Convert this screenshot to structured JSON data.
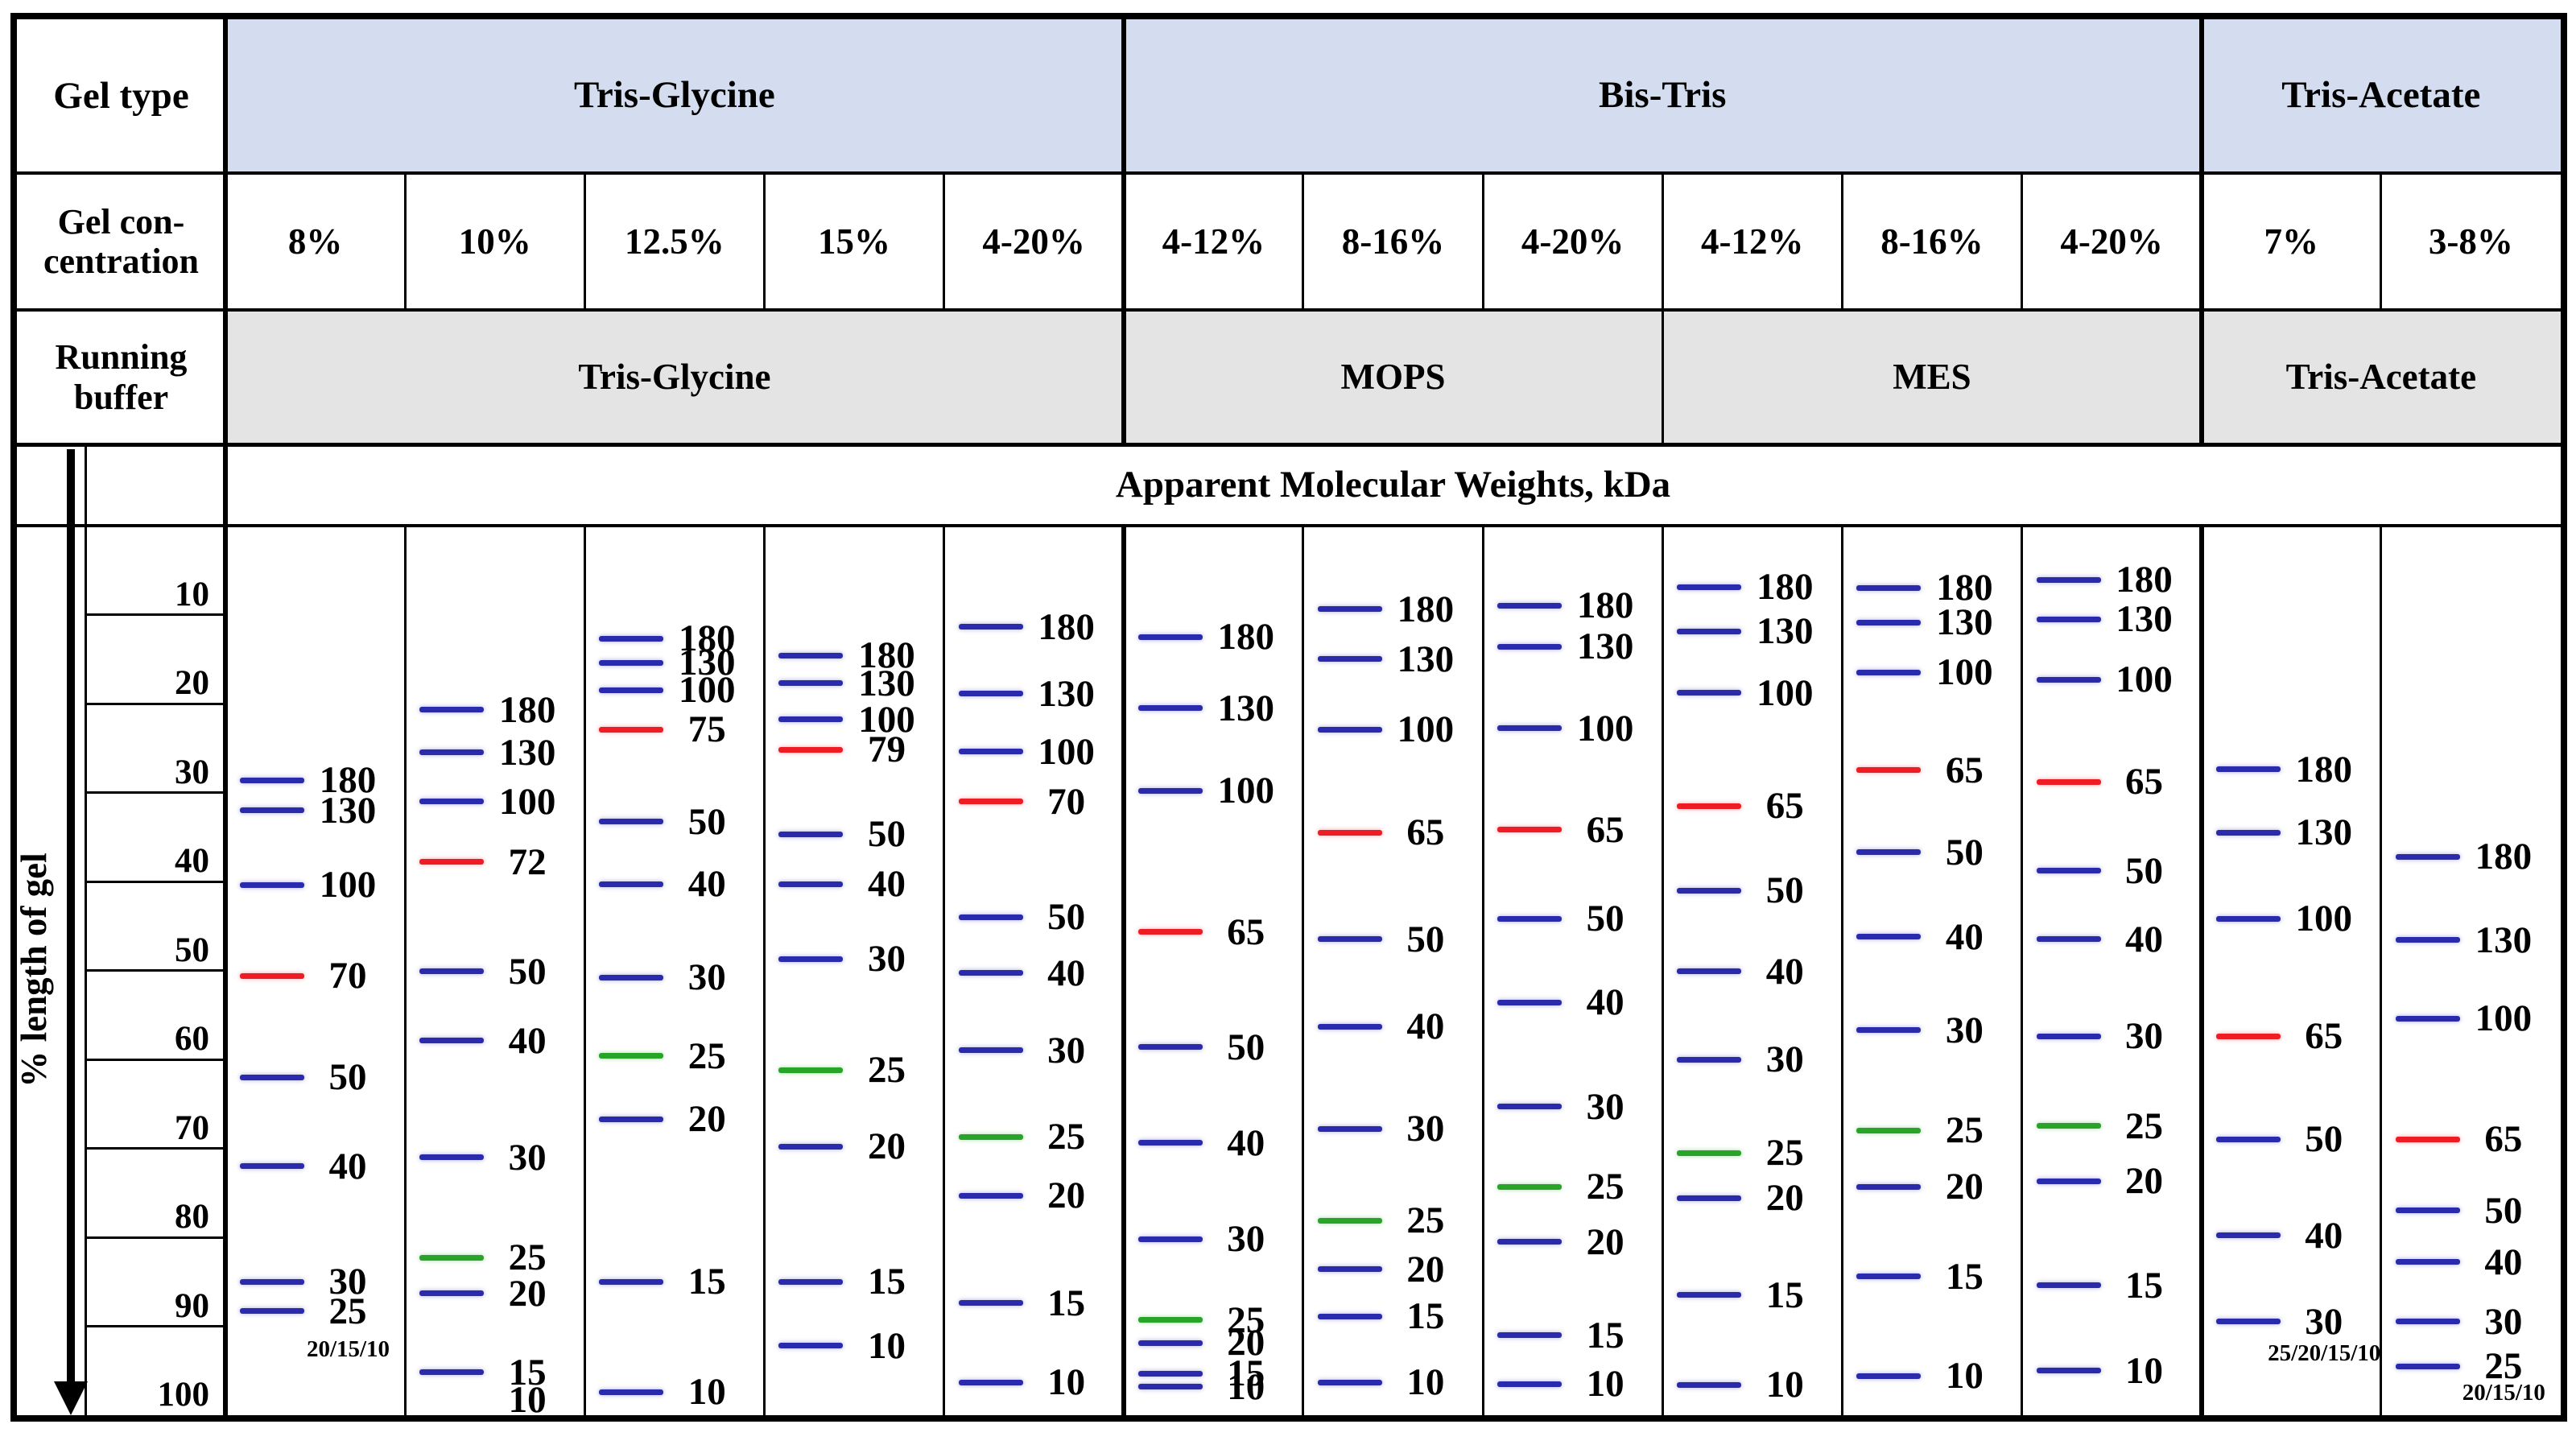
{
  "table": {
    "gel_type_row": {
      "label": "Gel type",
      "groups": [
        {
          "label": "Tris-Glycine",
          "cols": 5
        },
        {
          "label": "Bis-Tris",
          "cols": 6
        },
        {
          "label": "Tris-Acetate",
          "cols": 2
        }
      ]
    },
    "concentration_row": {
      "label_lines": [
        "Gel con-",
        "centration"
      ],
      "values": [
        "8%",
        "10%",
        "12.5%",
        "15%",
        "4-20%",
        "4-12%",
        "8-16%",
        "4-20%",
        "4-12%",
        "8-16%",
        "4-20%",
        "7%",
        "3-8%"
      ]
    },
    "buffer_row": {
      "label_lines": [
        "Running",
        "buffer"
      ],
      "groups": [
        {
          "label": "Tris-Glycine",
          "cols": 5
        },
        {
          "label": "MOPS",
          "cols": 3
        },
        {
          "label": "MES",
          "cols": 3
        },
        {
          "label": "Tris-Acetate",
          "cols": 2
        }
      ]
    },
    "mw_header": "Apparent Molecular Weights, kDa"
  },
  "axis": {
    "title": "% length of gel",
    "ticks": [
      "10",
      "20",
      "30",
      "40",
      "50",
      "60",
      "70",
      "80",
      "90",
      "100"
    ],
    "range": [
      0,
      100
    ]
  },
  "colors": {
    "band_blue": "#2a2aad",
    "band_red": "#ee1c25",
    "band_green": "#28a428",
    "gel_type_fill": "#d3ddef",
    "buffer_fill": "#e4e4e4",
    "line_black": "#000000"
  },
  "chart_data": {
    "type": "table",
    "title": "Apparent Molecular Weights, kDa",
    "ylabel": "% length of gel",
    "ylim": [
      0,
      100
    ],
    "value_unit": "kDa",
    "lanes": [
      {
        "gel_type": "Tris-Glycine",
        "concentration": "8%",
        "running_buffer": "Tris-Glycine",
        "bands": [
          {
            "kda": 180,
            "color": "blue",
            "pct": 28.6
          },
          {
            "kda": 130,
            "color": "blue",
            "pct": 32.0
          },
          {
            "kda": 100,
            "color": "blue",
            "pct": 40.4
          },
          {
            "kda": 70,
            "color": "red",
            "pct": 50.6
          },
          {
            "kda": 50,
            "color": "blue",
            "pct": 62.0
          },
          {
            "kda": 40,
            "color": "blue",
            "pct": 72.0
          },
          {
            "kda": 30,
            "color": "blue",
            "pct": 85.0
          },
          {
            "kda": 25,
            "color": "blue",
            "pct": 88.3
          }
        ],
        "extra_label": {
          "text": "20/15/10",
          "pct": 92.6,
          "size": "small"
        }
      },
      {
        "gel_type": "Tris-Glycine",
        "concentration": "10%",
        "running_buffer": "Tris-Glycine",
        "bands": [
          {
            "kda": 180,
            "color": "blue",
            "pct": 20.7
          },
          {
            "kda": 130,
            "color": "blue",
            "pct": 25.5
          },
          {
            "kda": 100,
            "color": "blue",
            "pct": 31.0
          },
          {
            "kda": 72,
            "color": "red",
            "pct": 37.8
          },
          {
            "kda": 50,
            "color": "blue",
            "pct": 50.1
          },
          {
            "kda": 40,
            "color": "blue",
            "pct": 57.9
          },
          {
            "kda": 30,
            "color": "blue",
            "pct": 71.0
          },
          {
            "kda": 25,
            "color": "green",
            "pct": 82.3
          },
          {
            "kda": 20,
            "color": "blue",
            "pct": 86.3
          },
          {
            "kda": 15,
            "color": "blue",
            "pct": 95.2
          }
        ],
        "extra_label": {
          "text": "10",
          "pct": 98.3,
          "size": "normal"
        }
      },
      {
        "gel_type": "Tris-Glycine",
        "concentration": "12.5%",
        "running_buffer": "Tris-Glycine",
        "bands": [
          {
            "kda": 180,
            "color": "blue",
            "pct": 12.7
          },
          {
            "kda": 130,
            "color": "blue",
            "pct": 15.4
          },
          {
            "kda": 100,
            "color": "blue",
            "pct": 18.5
          },
          {
            "kda": 75,
            "color": "red",
            "pct": 22.9
          },
          {
            "kda": 50,
            "color": "blue",
            "pct": 33.3
          },
          {
            "kda": 40,
            "color": "blue",
            "pct": 40.3
          },
          {
            "kda": 30,
            "color": "blue",
            "pct": 50.8
          },
          {
            "kda": 25,
            "color": "green",
            "pct": 59.6
          },
          {
            "kda": 20,
            "color": "blue",
            "pct": 66.7
          },
          {
            "kda": 15,
            "color": "blue",
            "pct": 85.0
          },
          {
            "kda": 10,
            "color": "blue",
            "pct": 97.4
          }
        ]
      },
      {
        "gel_type": "Tris-Glycine",
        "concentration": "15%",
        "running_buffer": "Tris-Glycine",
        "bands": [
          {
            "kda": 180,
            "color": "blue",
            "pct": 14.6
          },
          {
            "kda": 130,
            "color": "blue",
            "pct": 17.7
          },
          {
            "kda": 100,
            "color": "blue",
            "pct": 21.8
          },
          {
            "kda": 79,
            "color": "red",
            "pct": 25.2
          },
          {
            "kda": 50,
            "color": "blue",
            "pct": 34.7
          },
          {
            "kda": 40,
            "color": "blue",
            "pct": 40.3
          },
          {
            "kda": 30,
            "color": "blue",
            "pct": 48.7
          },
          {
            "kda": 25,
            "color": "green",
            "pct": 61.2
          },
          {
            "kda": 20,
            "color": "blue",
            "pct": 69.8
          },
          {
            "kda": 15,
            "color": "blue",
            "pct": 85.0
          },
          {
            "kda": 10,
            "color": "blue",
            "pct": 92.2
          }
        ]
      },
      {
        "gel_type": "Tris-Glycine",
        "concentration": "4-20%",
        "running_buffer": "Tris-Glycine",
        "bands": [
          {
            "kda": 180,
            "color": "blue",
            "pct": 11.4
          },
          {
            "kda": 130,
            "color": "blue",
            "pct": 18.9
          },
          {
            "kda": 100,
            "color": "blue",
            "pct": 25.4
          },
          {
            "kda": 70,
            "color": "red",
            "pct": 31.0
          },
          {
            "kda": 50,
            "color": "blue",
            "pct": 44.0
          },
          {
            "kda": 40,
            "color": "blue",
            "pct": 50.3
          },
          {
            "kda": 30,
            "color": "blue",
            "pct": 59.0
          },
          {
            "kda": 25,
            "color": "green",
            "pct": 68.7
          },
          {
            "kda": 20,
            "color": "blue",
            "pct": 75.3
          },
          {
            "kda": 15,
            "color": "blue",
            "pct": 87.4
          },
          {
            "kda": 10,
            "color": "blue",
            "pct": 96.3
          }
        ]
      },
      {
        "gel_type": "Bis-Tris",
        "concentration": "4-12%",
        "running_buffer": "MOPS",
        "bands": [
          {
            "kda": 180,
            "color": "blue",
            "pct": 12.5
          },
          {
            "kda": 130,
            "color": "blue",
            "pct": 20.5
          },
          {
            "kda": 100,
            "color": "blue",
            "pct": 29.8
          },
          {
            "kda": 65,
            "color": "red",
            "pct": 45.7
          },
          {
            "kda": 50,
            "color": "blue",
            "pct": 58.6
          },
          {
            "kda": 40,
            "color": "blue",
            "pct": 69.4
          },
          {
            "kda": 30,
            "color": "blue",
            "pct": 80.2
          },
          {
            "kda": 25,
            "color": "green",
            "pct": 89.3
          },
          {
            "kda": 20,
            "color": "blue",
            "pct": 91.9
          },
          {
            "kda": 15,
            "color": "blue",
            "pct": 95.3
          },
          {
            "kda": 10,
            "color": "blue",
            "pct": 96.8
          }
        ]
      },
      {
        "gel_type": "Bis-Tris",
        "concentration": "8-16%",
        "running_buffer": "MOPS",
        "bands": [
          {
            "kda": 180,
            "color": "blue",
            "pct": 9.4
          },
          {
            "kda": 130,
            "color": "blue",
            "pct": 15.0
          },
          {
            "kda": 100,
            "color": "blue",
            "pct": 22.9
          },
          {
            "kda": 65,
            "color": "red",
            "pct": 34.5
          },
          {
            "kda": 50,
            "color": "blue",
            "pct": 46.5
          },
          {
            "kda": 40,
            "color": "blue",
            "pct": 56.3
          },
          {
            "kda": 30,
            "color": "blue",
            "pct": 67.8
          },
          {
            "kda": 25,
            "color": "green",
            "pct": 78.1
          },
          {
            "kda": 20,
            "color": "blue",
            "pct": 83.6
          },
          {
            "kda": 15,
            "color": "blue",
            "pct": 88.9
          },
          {
            "kda": 10,
            "color": "blue",
            "pct": 96.3
          }
        ]
      },
      {
        "gel_type": "Bis-Tris",
        "concentration": "4-20%",
        "running_buffer": "MOPS",
        "bands": [
          {
            "kda": 180,
            "color": "blue",
            "pct": 9.0
          },
          {
            "kda": 130,
            "color": "blue",
            "pct": 13.6
          },
          {
            "kda": 100,
            "color": "blue",
            "pct": 22.8
          },
          {
            "kda": 65,
            "color": "red",
            "pct": 34.2
          },
          {
            "kda": 50,
            "color": "blue",
            "pct": 44.2
          },
          {
            "kda": 40,
            "color": "blue",
            "pct": 53.6
          },
          {
            "kda": 30,
            "color": "blue",
            "pct": 65.3
          },
          {
            "kda": 25,
            "color": "green",
            "pct": 74.3
          },
          {
            "kda": 20,
            "color": "blue",
            "pct": 80.5
          },
          {
            "kda": 15,
            "color": "blue",
            "pct": 91.0
          },
          {
            "kda": 10,
            "color": "blue",
            "pct": 96.5
          }
        ]
      },
      {
        "gel_type": "Bis-Tris",
        "concentration": "4-12%",
        "running_buffer": "MES",
        "bands": [
          {
            "kda": 180,
            "color": "blue",
            "pct": 6.9
          },
          {
            "kda": 130,
            "color": "blue",
            "pct": 11.9
          },
          {
            "kda": 100,
            "color": "blue",
            "pct": 18.8
          },
          {
            "kda": 65,
            "color": "red",
            "pct": 31.5
          },
          {
            "kda": 50,
            "color": "blue",
            "pct": 41.0
          },
          {
            "kda": 40,
            "color": "blue",
            "pct": 50.1
          },
          {
            "kda": 30,
            "color": "blue",
            "pct": 60.0
          },
          {
            "kda": 25,
            "color": "green",
            "pct": 70.5
          },
          {
            "kda": 20,
            "color": "blue",
            "pct": 75.6
          },
          {
            "kda": 15,
            "color": "blue",
            "pct": 86.5
          },
          {
            "kda": 10,
            "color": "blue",
            "pct": 96.6
          }
        ]
      },
      {
        "gel_type": "Bis-Tris",
        "concentration": "8-16%",
        "running_buffer": "MES",
        "bands": [
          {
            "kda": 180,
            "color": "blue",
            "pct": 7.0
          },
          {
            "kda": 130,
            "color": "blue",
            "pct": 10.9
          },
          {
            "kda": 100,
            "color": "blue",
            "pct": 16.5
          },
          {
            "kda": 65,
            "color": "red",
            "pct": 27.5
          },
          {
            "kda": 50,
            "color": "blue",
            "pct": 36.7
          },
          {
            "kda": 40,
            "color": "blue",
            "pct": 46.2
          },
          {
            "kda": 30,
            "color": "blue",
            "pct": 56.7
          },
          {
            "kda": 25,
            "color": "green",
            "pct": 68.0
          },
          {
            "kda": 20,
            "color": "blue",
            "pct": 74.3
          },
          {
            "kda": 15,
            "color": "blue",
            "pct": 84.4
          },
          {
            "kda": 10,
            "color": "blue",
            "pct": 95.6
          }
        ]
      },
      {
        "gel_type": "Bis-Tris",
        "concentration": "4-20%",
        "running_buffer": "MES",
        "bands": [
          {
            "kda": 180,
            "color": "blue",
            "pct": 6.1
          },
          {
            "kda": 130,
            "color": "blue",
            "pct": 10.5
          },
          {
            "kda": 100,
            "color": "blue",
            "pct": 17.3
          },
          {
            "kda": 65,
            "color": "red",
            "pct": 28.8
          },
          {
            "kda": 50,
            "color": "blue",
            "pct": 38.8
          },
          {
            "kda": 40,
            "color": "blue",
            "pct": 46.5
          },
          {
            "kda": 30,
            "color": "blue",
            "pct": 57.4
          },
          {
            "kda": 25,
            "color": "green",
            "pct": 67.5
          },
          {
            "kda": 20,
            "color": "blue",
            "pct": 73.7
          },
          {
            "kda": 15,
            "color": "blue",
            "pct": 85.4
          },
          {
            "kda": 10,
            "color": "blue",
            "pct": 95.0
          }
        ]
      },
      {
        "gel_type": "Tris-Acetate",
        "concentration": "7%",
        "running_buffer": "Tris-Acetate",
        "bands": [
          {
            "kda": 180,
            "color": "blue",
            "pct": 27.4
          },
          {
            "kda": 130,
            "color": "blue",
            "pct": 34.5
          },
          {
            "kda": 100,
            "color": "blue",
            "pct": 44.2
          },
          {
            "kda": 65,
            "color": "red",
            "pct": 57.4
          },
          {
            "kda": 50,
            "color": "blue",
            "pct": 69.0
          },
          {
            "kda": 40,
            "color": "blue",
            "pct": 79.8
          },
          {
            "kda": 30,
            "color": "blue",
            "pct": 89.5
          }
        ],
        "extra_label": {
          "text": "25/20/15/10",
          "pct": 93.0,
          "size": "small"
        }
      },
      {
        "gel_type": "Tris-Acetate",
        "concentration": "3-8%",
        "running_buffer": "Tris-Acetate",
        "bands": [
          {
            "kda": 180,
            "color": "blue",
            "pct": 37.2
          },
          {
            "kda": 130,
            "color": "blue",
            "pct": 46.6
          },
          {
            "kda": 100,
            "color": "blue",
            "pct": 55.4
          },
          {
            "kda": 65,
            "color": "red",
            "pct": 69.0
          },
          {
            "kda": 50,
            "color": "blue",
            "pct": 77.0
          },
          {
            "kda": 40,
            "color": "blue",
            "pct": 82.8
          },
          {
            "kda": 30,
            "color": "blue",
            "pct": 89.5
          },
          {
            "kda": 25,
            "color": "blue",
            "pct": 94.5
          }
        ],
        "extra_label": {
          "text": "20/15/10",
          "pct": 97.5,
          "size": "small"
        }
      }
    ]
  }
}
